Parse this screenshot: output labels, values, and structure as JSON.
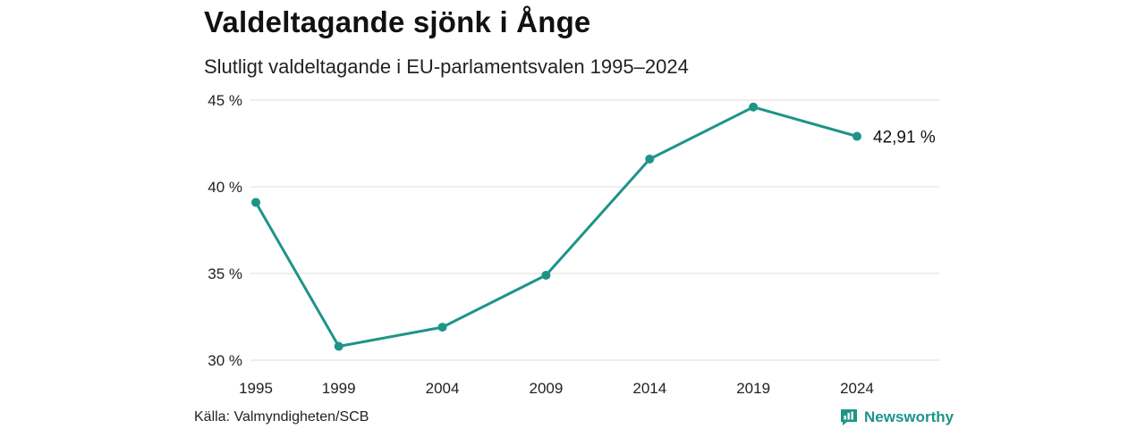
{
  "header": {
    "title": "Valdeltagande sjönk i Ånge",
    "subtitle": "Slutligt valdeltagande i EU-parlamentsvalen 1995–2024"
  },
  "footer": {
    "source": "Källa: Valmyndigheten/SCB",
    "brand": "Newsworthy",
    "brand_icon": "bar-chart-speech-bubble-icon"
  },
  "colors": {
    "line": "#1e9488",
    "grid": "#dddddd",
    "brand": "#1e9488"
  },
  "chart_data": {
    "type": "line",
    "title": "Valdeltagande sjönk i Ånge",
    "subtitle": "Slutligt valdeltagande i EU-parlamentsvalen 1995–2024",
    "x": [
      1995,
      1999,
      2004,
      2009,
      2014,
      2019,
      2024
    ],
    "series": [
      {
        "values": [
          39.1,
          30.8,
          31.9,
          34.9,
          41.6,
          44.6,
          42.91
        ]
      }
    ],
    "ylim": [
      30,
      45
    ],
    "yticks": [
      30,
      35,
      40,
      45
    ],
    "ytick_labels": [
      "30 %",
      "35 %",
      "40 %",
      "45 %"
    ],
    "xtick_labels": [
      "1995",
      "1999",
      "2004",
      "2009",
      "2014",
      "2019",
      "2024"
    ],
    "end_label": "42,91 %",
    "grid": true
  }
}
